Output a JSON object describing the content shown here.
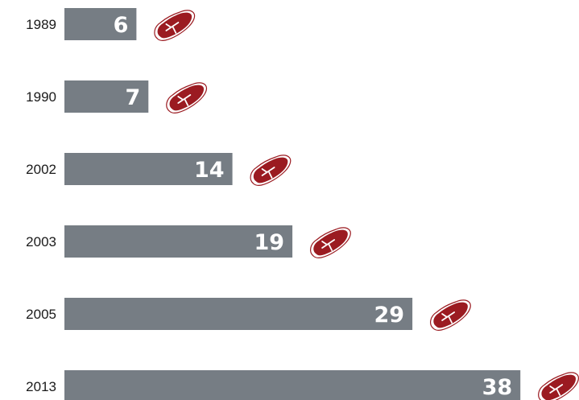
{
  "chart_data": {
    "type": "bar",
    "orientation": "horizontal",
    "categories": [
      "1989",
      "1990",
      "2002",
      "2003",
      "2005",
      "2013"
    ],
    "values": [
      6,
      7,
      14,
      19,
      29,
      38
    ],
    "data_labels": [
      "6",
      "7",
      "14",
      "19",
      "29",
      "38"
    ],
    "title": "",
    "xlabel": "",
    "ylabel": "",
    "xlim": [
      0,
      38
    ],
    "grid": false,
    "legend": "none",
    "bar_color": "#767d84",
    "label_color": "#ffffff",
    "marker_icon": "steak-icon",
    "marker_color": "#9b1b21"
  }
}
